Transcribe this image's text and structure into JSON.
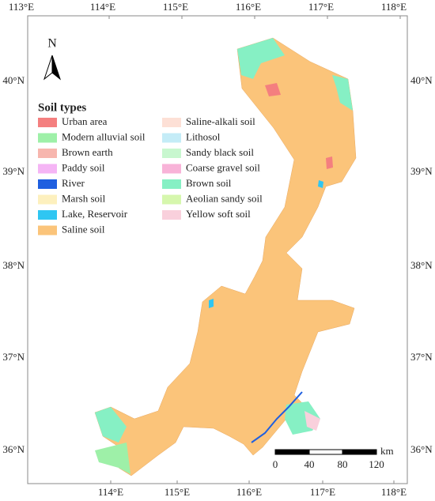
{
  "map": {
    "north_label": "N",
    "lon_labels_top": [
      "113°E",
      "114°E",
      "115°E",
      "116°E",
      "117°E",
      "118°E"
    ],
    "lon_labels_bottom": [
      "114°E",
      "115°E",
      "116°E",
      "117°E",
      "118°E"
    ],
    "lat_labels": [
      "40°N",
      "39°N",
      "38°N",
      "37°N",
      "36°N"
    ]
  },
  "legend": {
    "title": "Soil types",
    "items": [
      {
        "name": "Urban area",
        "color": "#f47f7f"
      },
      {
        "name": "Modern alluvial soil",
        "color": "#9ef0a8"
      },
      {
        "name": "Brown earth",
        "color": "#f7b6ae"
      },
      {
        "name": "Paddy soil",
        "color": "#f5b5f5"
      },
      {
        "name": "River",
        "color": "#1f5fe0"
      },
      {
        "name": "Marsh soil",
        "color": "#fdf0be"
      },
      {
        "name": "Lake, Reservoir",
        "color": "#2fc6f2"
      },
      {
        "name": "Saline soil",
        "color": "#fbc47a"
      },
      {
        "name": "Saline-alkali soil",
        "color": "#fde0d6"
      },
      {
        "name": "Lithosol",
        "color": "#c4ecf7"
      },
      {
        "name": "Sandy black soil",
        "color": "#c8f7cf"
      },
      {
        "name": "Coarse gravel soil",
        "color": "#f8b3d8"
      },
      {
        "name": "Brown soil",
        "color": "#86f0c4"
      },
      {
        "name": "Aeolian sandy soil",
        "color": "#d6f7ad"
      },
      {
        "name": "Yellow soft soil",
        "color": "#f9d0dc"
      }
    ]
  },
  "scale_bar": {
    "labels": [
      "0",
      "40",
      "80",
      "120"
    ],
    "unit": "km"
  }
}
